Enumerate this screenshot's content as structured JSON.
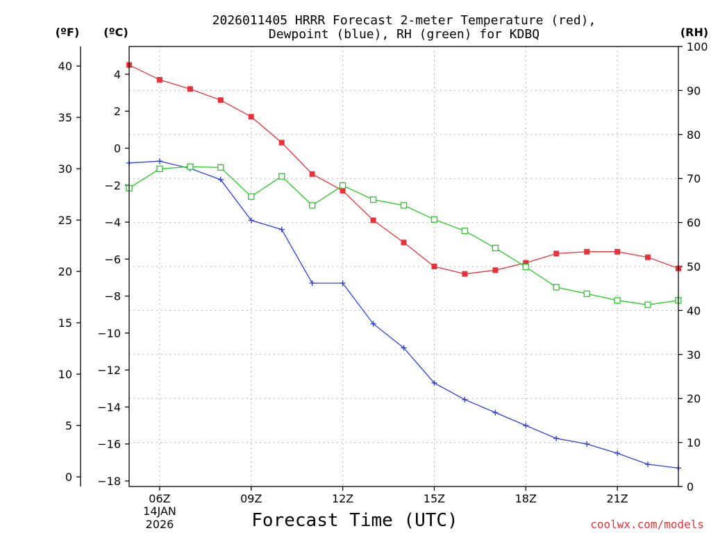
{
  "chart_data": {
    "type": "line",
    "title_line1": "2026011405 HRRR Forecast 2-meter Temperature (red),",
    "title_line2": "Dewpoint (blue), RH (green) for KDBQ",
    "axis_unit_f": "(ºF)",
    "axis_unit_c": "(ºC)",
    "axis_unit_rh": "(RH)",
    "xlabel": "Forecast Time (UTC)",
    "credit": "coolwx.com/models",
    "date_line1": "14JAN",
    "date_line2": "2026",
    "x_range": [
      5,
      23
    ],
    "x_ticks": [
      {
        "x": 6,
        "label": "06Z"
      },
      {
        "x": 9,
        "label": "09Z"
      },
      {
        "x": 12,
        "label": "12Z"
      },
      {
        "x": 15,
        "label": "15Z"
      },
      {
        "x": 18,
        "label": "18Z"
      },
      {
        "x": 21,
        "label": "21Z"
      }
    ],
    "ylim_c": [
      -18.3,
      5.5
    ],
    "yticks_c": [
      {
        "v": 4,
        "label": "4"
      },
      {
        "v": 2,
        "label": "2"
      },
      {
        "v": 0,
        "label": "0"
      },
      {
        "v": -2,
        "label": "−2"
      },
      {
        "v": -4,
        "label": "−4"
      },
      {
        "v": -6,
        "label": "−6"
      },
      {
        "v": -8,
        "label": "−8"
      },
      {
        "v": -10,
        "label": "−10"
      },
      {
        "v": -12,
        "label": "−12"
      },
      {
        "v": -14,
        "label": "−14"
      },
      {
        "v": -16,
        "label": "−16"
      },
      {
        "v": -18,
        "label": "−18"
      }
    ],
    "yticks_f": [
      {
        "v": 40,
        "label": "40"
      },
      {
        "v": 35,
        "label": "35"
      },
      {
        "v": 30,
        "label": "30"
      },
      {
        "v": 25,
        "label": "25"
      },
      {
        "v": 20,
        "label": "20"
      },
      {
        "v": 15,
        "label": "15"
      },
      {
        "v": 10,
        "label": "10"
      },
      {
        "v": 5,
        "label": "5"
      },
      {
        "v": 0,
        "label": "0"
      }
    ],
    "ylim_rh": [
      0,
      100
    ],
    "yticks_rh": [
      {
        "v": 100,
        "label": "100"
      },
      {
        "v": 90,
        "label": "90"
      },
      {
        "v": 80,
        "label": "80"
      },
      {
        "v": 70,
        "label": "70"
      },
      {
        "v": 60,
        "label": "60"
      },
      {
        "v": 50,
        "label": "50"
      },
      {
        "v": 40,
        "label": "40"
      },
      {
        "v": 30,
        "label": "30"
      },
      {
        "v": 20,
        "label": "20"
      },
      {
        "v": 10,
        "label": "10"
      },
      {
        "v": 0,
        "label": "0"
      }
    ],
    "x": [
      5,
      6,
      7,
      8,
      9,
      10,
      11,
      12,
      13,
      14,
      15,
      16,
      17,
      18,
      19,
      20,
      21,
      22,
      23
    ],
    "series": [
      {
        "name": "Temperature",
        "unit": "C",
        "color": "#e8323a",
        "marker": "filled-square",
        "values": [
          4.5,
          3.7,
          3.2,
          2.6,
          1.7,
          0.3,
          -1.4,
          -2.3,
          -3.9,
          -5.1,
          -6.4,
          -6.8,
          -6.6,
          -6.2,
          -5.7,
          -5.6,
          -5.6,
          -5.9,
          -6.5
        ]
      },
      {
        "name": "Dewpoint",
        "unit": "C",
        "color": "#2a3fe0",
        "marker": "plus",
        "values": [
          -0.8,
          -0.7,
          -1.1,
          -1.7,
          -3.9,
          -4.4,
          -7.3,
          -7.3,
          -9.5,
          -10.8,
          -12.7,
          -13.6,
          -14.3,
          -15.0,
          -15.7,
          -16.0,
          -16.5,
          -17.1,
          -17.3
        ]
      },
      {
        "name": "RH",
        "unit": "%",
        "color": "#22cc22",
        "marker": "open-square",
        "values": [
          67.8,
          72.2,
          72.7,
          72.5,
          65.9,
          70.5,
          63.9,
          68.4,
          65.2,
          63.9,
          60.7,
          58.1,
          54.2,
          49.9,
          45.3,
          43.8,
          42.3,
          41.3,
          42.3
        ]
      }
    ]
  }
}
